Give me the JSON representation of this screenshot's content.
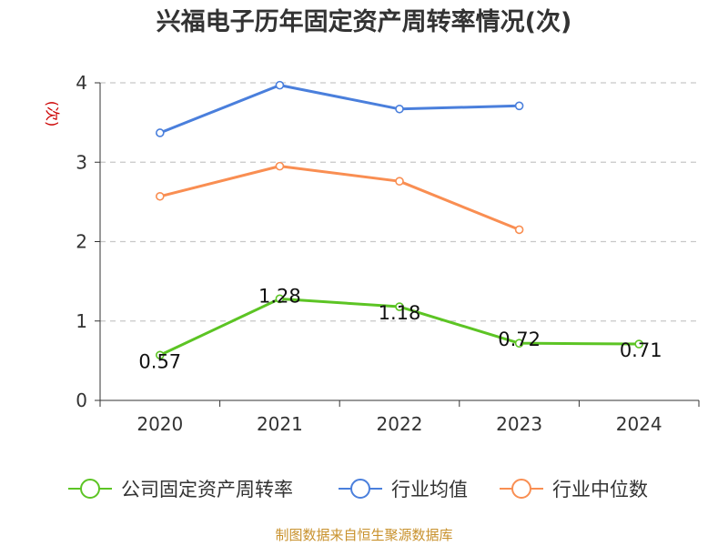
{
  "chart_data": {
    "type": "line",
    "title": "兴福电子历年固定资产周转率情况(次)",
    "ylabel": "(次)",
    "xlabel": "",
    "ylim": [
      0,
      4
    ],
    "yticks": [
      "0",
      "1",
      "2",
      "3",
      "4"
    ],
    "categories": [
      "2020",
      "2021",
      "2022",
      "2023",
      "2024"
    ],
    "grid": true,
    "legend_position": "bottom",
    "series": [
      {
        "name": "公司固定资产周转率",
        "color": "#5cc424",
        "values": [
          0.57,
          1.28,
          1.18,
          0.72,
          0.71
        ],
        "labels": [
          "0.57",
          "1.28",
          "1.18",
          "0.72",
          "0.71"
        ]
      },
      {
        "name": "行业均值",
        "color": "#4a7fdc",
        "values": [
          3.37,
          3.97,
          3.67,
          3.71,
          null
        ]
      },
      {
        "name": "行业中位数",
        "color": "#f98e52",
        "values": [
          2.57,
          2.95,
          2.76,
          2.15,
          null
        ]
      }
    ],
    "source": "制图数据来自恒生聚源数据库"
  }
}
